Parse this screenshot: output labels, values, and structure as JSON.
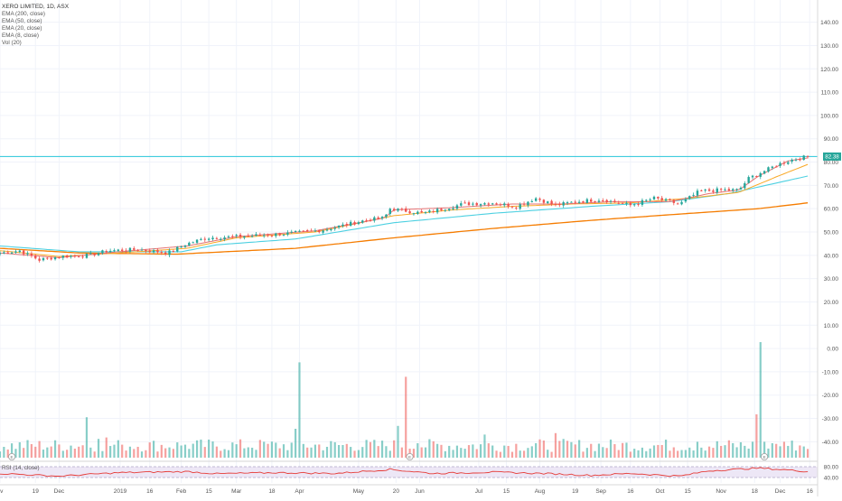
{
  "header": {
    "symbol_line": "XERO LIMITED, 1D, ASX",
    "studies": [
      "EMA (200, close)",
      "EMA (50, close)",
      "EMA (20, close)",
      "EMA (8, close)",
      "Vol (20)"
    ]
  },
  "rsi_label": "RSI (14, close)",
  "colors": {
    "up": "#26a69a",
    "down": "#ef5350",
    "ema200": "#f57c00",
    "ema50": "#4dd0e1",
    "ema20": "#f9a825",
    "ema8": "#e57373",
    "hline": "#26c6da",
    "rsi": "#e53935",
    "rsi_band": "#ede7f6",
    "grid": "#f0f3fa",
    "axis_text": "#555555",
    "price_badge": "#26a69a"
  },
  "chart_data": {
    "type": "candlestick",
    "price_axis": {
      "ylim": [
        -48,
        148
      ],
      "ticks": [
        "140.00",
        "130.00",
        "120.00",
        "110.00",
        "100.00",
        "90.00",
        "80.00",
        "70.00",
        "60.00",
        "50.00",
        "40.00",
        "30.00",
        "20.00",
        "10.00",
        "0.00",
        "-10.00",
        "-20.00",
        "-30.00",
        "-40.00"
      ],
      "last_price": "82.38",
      "horizontal_line": 82.38
    },
    "rsi_axis": {
      "ticks": [
        "80.00",
        "40.00"
      ]
    },
    "x_ticks": [
      {
        "label": "ov",
        "day": 0
      },
      {
        "label": "19",
        "day": 18
      },
      {
        "label": "Dec",
        "day": 30
      },
      {
        "label": "2019",
        "day": 61
      },
      {
        "label": "16",
        "day": 76
      },
      {
        "label": "Feb",
        "day": 92
      },
      {
        "label": "15",
        "day": 106
      },
      {
        "label": "Mar",
        "day": 120
      },
      {
        "label": "18",
        "day": 138
      },
      {
        "label": "Apr",
        "day": 152
      },
      {
        "label": "May",
        "day": 182
      },
      {
        "label": "20",
        "day": 201
      },
      {
        "label": "Jun",
        "day": 213
      },
      {
        "label": "Jul",
        "day": 243
      },
      {
        "label": "15",
        "day": 257
      },
      {
        "label": "Aug",
        "day": 274
      },
      {
        "label": "19",
        "day": 292
      },
      {
        "label": "Sep",
        "day": 305
      },
      {
        "label": "16",
        "day": 320
      },
      {
        "label": "Oct",
        "day": 335
      },
      {
        "label": "15",
        "day": 349
      },
      {
        "label": "Nov",
        "day": 366
      },
      {
        "label": "18",
        "day": 383
      },
      {
        "label": "Dec",
        "day": 396
      },
      {
        "label": "16",
        "day": 411
      }
    ],
    "x_range": [
      0,
      415
    ],
    "close_anchors": [
      [
        0,
        41
      ],
      [
        10,
        42
      ],
      [
        20,
        38
      ],
      [
        30,
        39.5
      ],
      [
        45,
        40
      ],
      [
        55,
        42
      ],
      [
        70,
        42.5
      ],
      [
        85,
        41
      ],
      [
        95,
        45
      ],
      [
        105,
        47.5
      ],
      [
        120,
        48
      ],
      [
        140,
        49
      ],
      [
        155,
        50
      ],
      [
        165,
        51
      ],
      [
        175,
        53
      ],
      [
        185,
        55
      ],
      [
        195,
        56
      ],
      [
        198,
        60
      ],
      [
        215,
        58
      ],
      [
        235,
        62
      ],
      [
        250,
        62.5
      ],
      [
        262,
        61
      ],
      [
        272,
        64.5
      ],
      [
        282,
        61.5
      ],
      [
        292,
        63
      ],
      [
        305,
        64
      ],
      [
        320,
        61.5
      ],
      [
        332,
        64.5
      ],
      [
        345,
        62
      ],
      [
        355,
        67.5
      ],
      [
        365,
        68
      ],
      [
        375,
        68
      ],
      [
        380,
        73
      ],
      [
        395,
        79
      ],
      [
        402,
        81
      ],
      [
        410,
        82.4
      ]
    ],
    "ema200_anchors": [
      [
        0,
        43
      ],
      [
        40,
        41
      ],
      [
        90,
        40.5
      ],
      [
        150,
        43
      ],
      [
        200,
        47.5
      ],
      [
        250,
        51.5
      ],
      [
        300,
        55
      ],
      [
        350,
        58
      ],
      [
        385,
        60
      ],
      [
        410,
        62.5
      ]
    ],
    "ema50_anchors": [
      [
        0,
        44
      ],
      [
        40,
        41.5
      ],
      [
        92,
        41.5
      ],
      [
        110,
        44.5
      ],
      [
        150,
        47
      ],
      [
        200,
        54
      ],
      [
        250,
        58
      ],
      [
        300,
        61
      ],
      [
        340,
        63
      ],
      [
        370,
        66.5
      ],
      [
        410,
        74
      ]
    ],
    "ema20_anchors": [
      [
        0,
        42
      ],
      [
        30,
        39.5
      ],
      [
        60,
        41
      ],
      [
        95,
        43
      ],
      [
        120,
        47.5
      ],
      [
        160,
        50
      ],
      [
        200,
        57
      ],
      [
        230,
        59.5
      ],
      [
        260,
        61
      ],
      [
        290,
        62
      ],
      [
        320,
        62.5
      ],
      [
        350,
        64.5
      ],
      [
        375,
        67
      ],
      [
        395,
        74
      ],
      [
        410,
        79
      ]
    ],
    "ema8_anchors": [
      [
        0,
        41
      ],
      [
        30,
        39
      ],
      [
        60,
        41.5
      ],
      [
        95,
        44
      ],
      [
        120,
        48
      ],
      [
        160,
        50.5
      ],
      [
        195,
        56
      ],
      [
        200,
        59.5
      ],
      [
        230,
        60.5
      ],
      [
        260,
        62
      ],
      [
        285,
        62
      ],
      [
        310,
        63
      ],
      [
        340,
        63
      ],
      [
        360,
        66.5
      ],
      [
        375,
        68
      ],
      [
        385,
        74
      ],
      [
        400,
        80.5
      ],
      [
        410,
        81.8
      ]
    ],
    "rsi_anchors": [
      [
        0,
        55
      ],
      [
        30,
        45
      ],
      [
        60,
        58
      ],
      [
        95,
        62
      ],
      [
        110,
        54
      ],
      [
        140,
        58
      ],
      [
        170,
        55
      ],
      [
        198,
        70
      ],
      [
        220,
        55
      ],
      [
        250,
        60
      ],
      [
        280,
        54
      ],
      [
        300,
        48
      ],
      [
        320,
        55
      ],
      [
        345,
        45
      ],
      [
        360,
        65
      ],
      [
        385,
        75
      ],
      [
        400,
        68
      ],
      [
        410,
        62
      ]
    ],
    "volume_spikes": [
      [
        44,
        28
      ],
      [
        50,
        13
      ],
      [
        55,
        14
      ],
      [
        62,
        9
      ],
      [
        94,
        9
      ],
      [
        134,
        11
      ],
      [
        151,
        20
      ],
      [
        152,
        66
      ],
      [
        202,
        22
      ],
      [
        206,
        56
      ],
      [
        207,
        12
      ],
      [
        213,
        10
      ],
      [
        246,
        16
      ],
      [
        282,
        17
      ],
      [
        354,
        11
      ],
      [
        384,
        30
      ],
      [
        385,
        48
      ],
      [
        386,
        80
      ],
      [
        387,
        44
      ],
      [
        388,
        11
      ],
      [
        392,
        10
      ],
      [
        398,
        11
      ]
    ]
  }
}
